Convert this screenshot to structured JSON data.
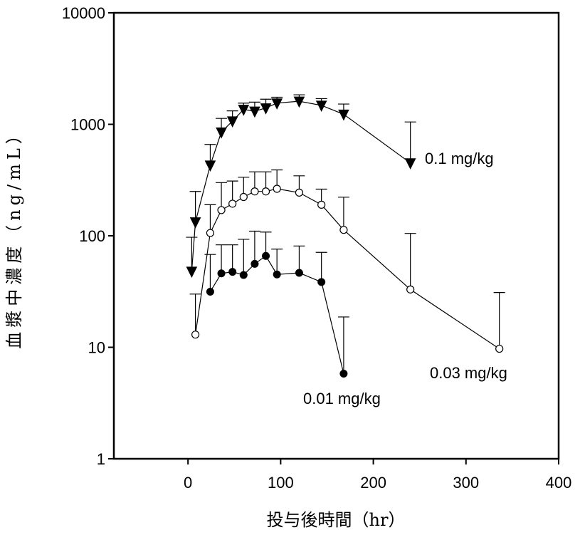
{
  "chart_data": {
    "type": "line",
    "title": "",
    "xlabel": "投与後時間（hr）",
    "ylabel": "血漿中濃度（ng/mL）",
    "xlim": [
      -80,
      400
    ],
    "ylim": [
      1,
      10000
    ],
    "yscale": "log",
    "grid": false,
    "x_ticks": [
      0,
      100,
      200,
      300,
      400
    ],
    "x_tick_labels": [
      "0",
      "100",
      "200",
      "300",
      "400"
    ],
    "y_ticks": [
      1,
      10,
      100,
      1000,
      10000
    ],
    "y_tick_labels": [
      "1",
      "10",
      "100",
      "1000",
      "10000"
    ],
    "series": [
      {
        "name": "0.1 mg/kg",
        "marker": "triangle-down-filled",
        "x": [
          4,
          8,
          24,
          36,
          48,
          60,
          72,
          84,
          96,
          120,
          144,
          168,
          240
        ],
        "y": [
          48,
          133,
          430,
          850,
          1070,
          1360,
          1310,
          1400,
          1550,
          1610,
          1480,
          1230,
          450
        ],
        "error_upper": [
          97,
          250,
          660,
          1130,
          1320,
          1550,
          1580,
          1680,
          1750,
          1840,
          1700,
          1520,
          1050
        ]
      },
      {
        "name": "0.03 mg/kg",
        "marker": "circle-open",
        "x": [
          8,
          24,
          36,
          48,
          60,
          72,
          84,
          96,
          120,
          144,
          168,
          240,
          336
        ],
        "y": [
          13,
          106,
          170,
          194,
          223,
          250,
          250,
          264,
          244,
          190,
          113,
          33,
          9.7
        ],
        "error_upper": [
          30,
          190,
          300,
          310,
          335,
          375,
          375,
          390,
          345,
          262,
          222,
          105,
          31
        ]
      },
      {
        "name": "0.01 mg/kg",
        "marker": "circle-filled",
        "x": [
          24,
          36,
          48,
          60,
          72,
          84,
          96,
          120,
          144,
          168
        ],
        "y": [
          31.5,
          46,
          47.5,
          44.5,
          56,
          66,
          45,
          46.5,
          38.5,
          5.8
        ],
        "error_upper": [
          68,
          83,
          83,
          93,
          110,
          108,
          76,
          81,
          71,
          18.7
        ]
      }
    ]
  }
}
